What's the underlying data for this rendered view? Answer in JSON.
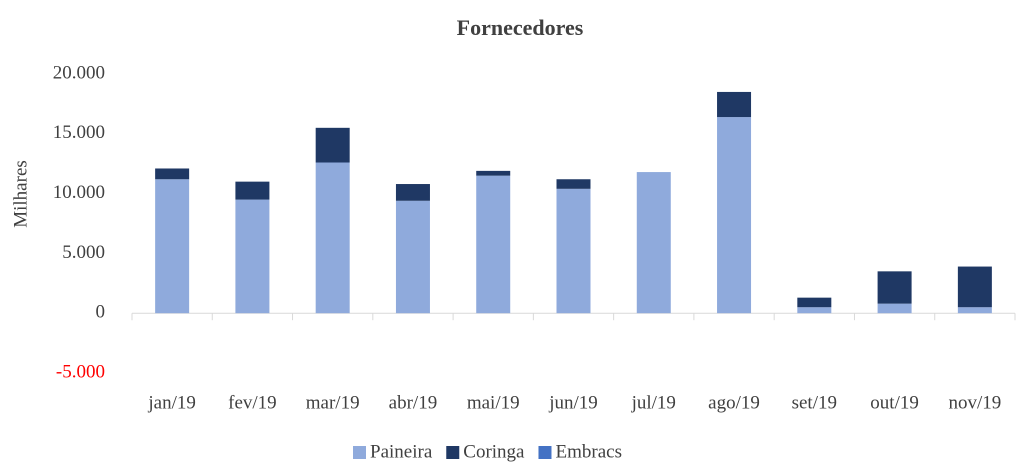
{
  "chart_data": {
    "type": "bar",
    "stacked": true,
    "title": "Fornecedores",
    "y_label": "Milhares",
    "categories": [
      "jan/19",
      "fev/19",
      "mar/19",
      "abr/19",
      "mai/19",
      "jun/19",
      "jul/19",
      "ago/19",
      "set/19",
      "out/19",
      "nov/19"
    ],
    "series": [
      {
        "name": "Paineira",
        "color": "#8faadc",
        "values": [
          11200,
          9500,
          12600,
          9400,
          11500,
          10400,
          11800,
          16400,
          500,
          800,
          500
        ]
      },
      {
        "name": "Coringa",
        "color": "#1f3864",
        "values": [
          900,
          1500,
          2900,
          1400,
          400,
          800,
          0,
          2100,
          800,
          2700,
          3400
        ]
      },
      {
        "name": "Embracs",
        "color": "#4472c4",
        "values": [
          0,
          0,
          0,
          0,
          0,
          0,
          0,
          0,
          0,
          0,
          0
        ]
      }
    ],
    "ylim": [
      -5000,
      20000
    ],
    "yticks": [
      {
        "value": -5000,
        "label": "-5.000"
      },
      0,
      {
        "value": 5000,
        "label": "5.000"
      },
      {
        "value": 10000,
        "label": "10.000"
      },
      {
        "value": 15000,
        "label": "15.000"
      },
      {
        "value": 20000,
        "label": "20.000"
      }
    ],
    "negative_tick_color": "#ff0000",
    "grid": false,
    "legend": "bottom"
  }
}
